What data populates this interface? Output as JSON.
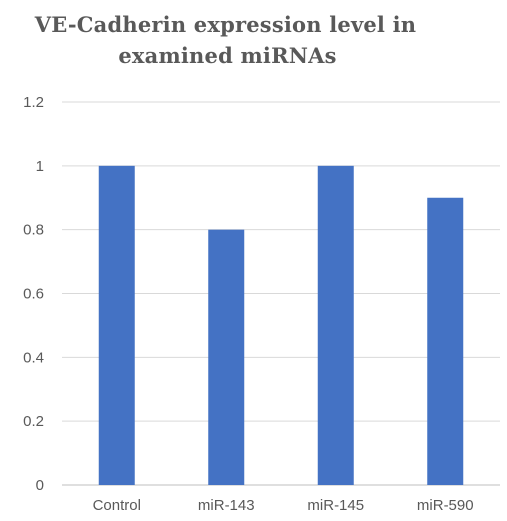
{
  "chart_data": {
    "type": "bar",
    "title_lines": [
      "VE-Cadherin expression level in",
      "examined miRNAs"
    ],
    "categories": [
      "Control",
      "miR-143",
      "miR-145",
      "miR-590"
    ],
    "series": [
      {
        "values": [
          1.0,
          0.8,
          1.0,
          0.9
        ]
      }
    ],
    "ylim": [
      0,
      1.2
    ],
    "yticks": [
      "0",
      "0.2",
      "0.4",
      "0.6",
      "0.8",
      "1",
      "1.2"
    ],
    "xlabel": "",
    "ylabel": "",
    "grid": "horizontal",
    "legend": "none",
    "bar_color": "#4472C4",
    "grid_color": "#d9d9d9",
    "text_color": "#595959"
  }
}
